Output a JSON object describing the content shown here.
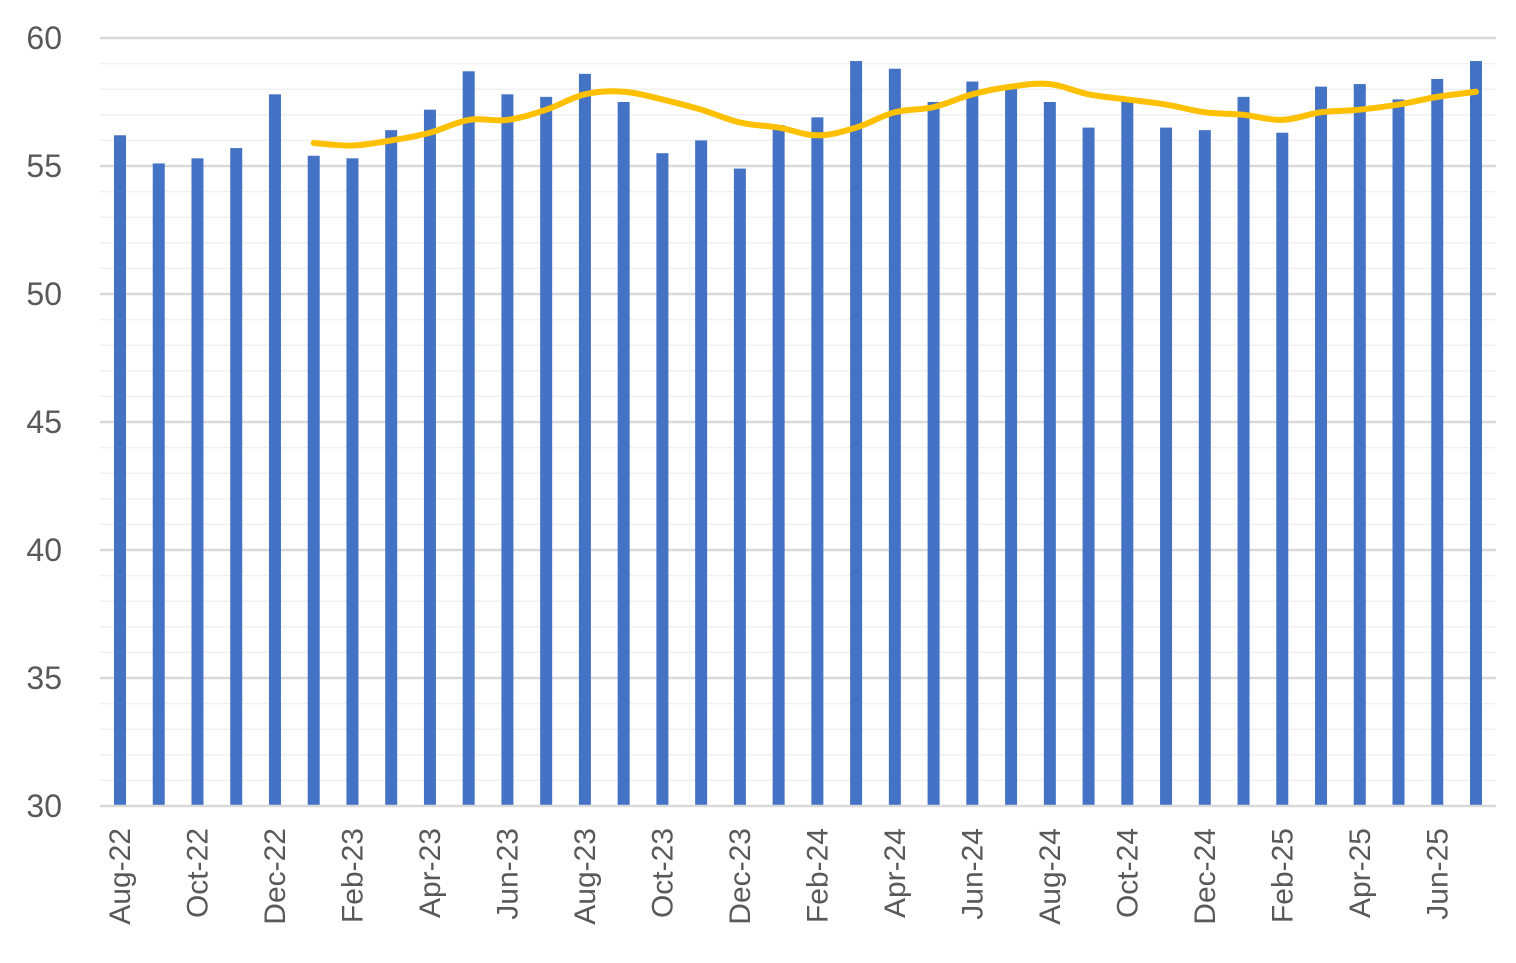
{
  "chart_data": {
    "type": "bar",
    "title": "",
    "xlabel": "",
    "ylabel": "",
    "ylim": [
      30,
      60
    ],
    "yticks": [
      30,
      35,
      40,
      45,
      50,
      55,
      60
    ],
    "grid": true,
    "legend": "none",
    "categories": [
      "Aug-22",
      "Sep-22",
      "Oct-22",
      "Nov-22",
      "Dec-22",
      "Jan-23",
      "Feb-23",
      "Mar-23",
      "Apr-23",
      "May-23",
      "Jun-23",
      "Jul-23",
      "Aug-23",
      "Sep-23",
      "Oct-23",
      "Nov-23",
      "Dec-23",
      "Jan-24",
      "Feb-24",
      "Mar-24",
      "Apr-24",
      "May-24",
      "Jun-24",
      "Jul-24",
      "Aug-24",
      "Sep-24",
      "Oct-24",
      "Nov-24",
      "Dec-24",
      "Jan-25",
      "Feb-25",
      "Mar-25",
      "Apr-25",
      "May-25",
      "Jun-25",
      "Jul-25"
    ],
    "tick_labels": [
      "Aug-22",
      "",
      "Oct-22",
      "",
      "Dec-22",
      "",
      "Feb-23",
      "",
      "Apr-23",
      "",
      "Jun-23",
      "",
      "Aug-23",
      "",
      "Oct-23",
      "",
      "Dec-23",
      "",
      "Feb-24",
      "",
      "Apr-24",
      "",
      "Jun-24",
      "",
      "Aug-24",
      "",
      "Oct-24",
      "",
      "Dec-24",
      "",
      "Feb-25",
      "",
      "Apr-25",
      "",
      "Jun-25",
      ""
    ],
    "series": [
      {
        "type": "bar",
        "color": "#4472C4",
        "values": [
          56.2,
          55.1,
          55.3,
          55.7,
          57.8,
          55.4,
          55.3,
          56.4,
          57.2,
          58.7,
          57.8,
          57.7,
          58.6,
          57.5,
          55.5,
          56.0,
          54.9,
          56.6,
          56.9,
          59.1,
          58.8,
          57.5,
          58.3,
          58.1,
          57.5,
          56.5,
          57.6,
          56.5,
          56.4,
          57.7,
          56.3,
          58.1,
          58.2,
          57.6,
          58.4,
          59.1
        ]
      },
      {
        "type": "line",
        "color": "#FFC000",
        "values": [
          null,
          null,
          null,
          null,
          null,
          55.9,
          55.8,
          56.0,
          56.3,
          56.8,
          56.8,
          57.2,
          57.8,
          57.9,
          57.6,
          57.2,
          56.7,
          56.5,
          56.2,
          56.5,
          57.1,
          57.3,
          57.8,
          58.1,
          58.2,
          57.8,
          57.6,
          57.4,
          57.1,
          57.0,
          56.8,
          57.1,
          57.2,
          57.4,
          57.7,
          57.9
        ]
      }
    ]
  }
}
